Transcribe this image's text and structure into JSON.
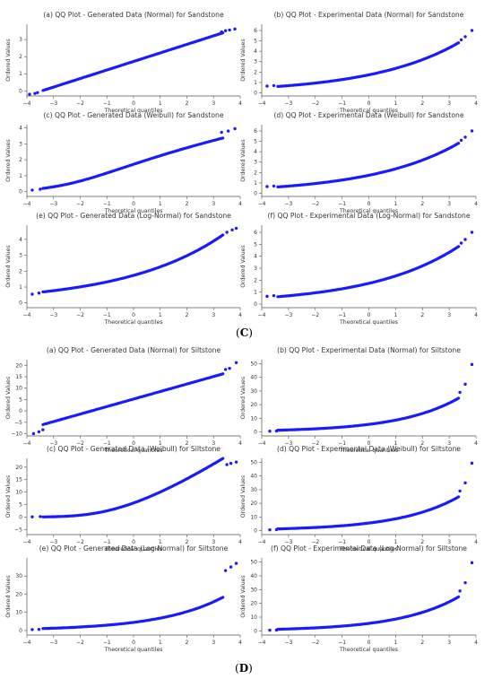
{
  "figure_labels": {
    "panel_c": "C",
    "panel_d": "D"
  },
  "chart_data": [
    {
      "id": "c-a",
      "type": "scatter",
      "title": "(a) QQ Plot - Generated Data (Normal) for Sandstone",
      "xlabel": "Theoretical quantiles",
      "ylabel": "Ordered Values",
      "xlim": [
        -4,
        4
      ],
      "ylim": [
        -0.3,
        3.9
      ],
      "xticks": [
        -4,
        -3,
        -2,
        -1,
        0,
        1,
        2,
        3,
        4
      ],
      "yticks": [
        0,
        1,
        2,
        3
      ],
      "curve": {
        "kind": "normal",
        "mu": 1.72,
        "sigma": 0.5
      },
      "points": [
        [
          -3.9,
          -0.2
        ],
        [
          -3.7,
          -0.15
        ],
        [
          -3.6,
          -0.1
        ],
        [
          3.3,
          3.45
        ],
        [
          3.45,
          3.52
        ],
        [
          3.6,
          3.56
        ],
        [
          3.8,
          3.62
        ]
      ],
      "marker_color": "#1a1aff"
    },
    {
      "id": "c-b",
      "type": "scatter",
      "title": "(b) QQ Plot - Experimental Data (Normal) for Sandstone",
      "xlabel": "Theoretical quantiles",
      "ylabel": "Ordered Values",
      "xlim": [
        -4,
        4
      ],
      "ylim": [
        -0.3,
        6.6
      ],
      "xticks": [
        -4,
        -3,
        -2,
        -1,
        0,
        1,
        2,
        3,
        4
      ],
      "yticks": [
        0,
        1,
        2,
        3,
        4,
        5,
        6
      ],
      "curve": {
        "kind": "lognormal",
        "mu": 0.55,
        "sigma": 0.305
      },
      "points": [
        [
          -3.8,
          0.65
        ],
        [
          -3.55,
          0.7
        ],
        [
          3.45,
          5.1
        ],
        [
          3.6,
          5.4
        ],
        [
          3.85,
          6.0
        ]
      ],
      "marker_color": "#1a1aff"
    },
    {
      "id": "c-c",
      "type": "scatter",
      "title": "(c) QQ Plot - Generated Data (Weibull) for Sandstone",
      "xlabel": "Theoretical quantiles",
      "ylabel": "Ordered Values",
      "xlim": [
        -4,
        4
      ],
      "ylim": [
        -0.3,
        4.2
      ],
      "xticks": [
        -4,
        -3,
        -2,
        -1,
        0,
        1,
        2,
        3,
        4
      ],
      "yticks": [
        0,
        1,
        2,
        3,
        4
      ],
      "curve": {
        "kind": "weibull",
        "k": 3.6,
        "lambda": 1.9
      },
      "points": [
        [
          -3.8,
          0.1
        ],
        [
          -3.5,
          0.15
        ],
        [
          3.3,
          3.72
        ],
        [
          3.55,
          3.8
        ],
        [
          3.8,
          3.95
        ]
      ],
      "marker_color": "#1a1aff"
    },
    {
      "id": "c-d",
      "type": "scatter",
      "title": "(d) QQ Plot - Experimental Data (Weibull) for Sandstone",
      "xlabel": "Theoretical quantiles",
      "ylabel": "Ordered Values",
      "xlim": [
        -4,
        4
      ],
      "ylim": [
        -0.3,
        6.6
      ],
      "xticks": [
        -4,
        -3,
        -2,
        -1,
        0,
        1,
        2,
        3,
        4
      ],
      "yticks": [
        0,
        1,
        2,
        3,
        4,
        5,
        6
      ],
      "curve": {
        "kind": "lognormal",
        "mu": 0.55,
        "sigma": 0.305
      },
      "points": [
        [
          -3.8,
          0.65
        ],
        [
          -3.55,
          0.7
        ],
        [
          3.45,
          5.1
        ],
        [
          3.6,
          5.4
        ],
        [
          3.85,
          6.0
        ]
      ],
      "marker_color": "#1a1aff"
    },
    {
      "id": "c-e",
      "type": "scatter",
      "title": "(e) QQ Plot - Generated Data (Log-Normal) for Sandstone",
      "xlabel": "Theoretical quantiles",
      "ylabel": "Ordered Values",
      "xlim": [
        -4,
        4
      ],
      "ylim": [
        -0.3,
        4.9
      ],
      "xticks": [
        -4,
        -3,
        -2,
        -1,
        0,
        1,
        2,
        3,
        4
      ],
      "yticks": [
        0,
        1,
        2,
        3,
        4
      ],
      "curve": {
        "kind": "lognormal",
        "mu": 0.55,
        "sigma": 0.27
      },
      "points": [
        [
          -3.8,
          0.55
        ],
        [
          -3.55,
          0.62
        ],
        [
          3.5,
          4.45
        ],
        [
          3.7,
          4.6
        ],
        [
          3.85,
          4.7
        ]
      ],
      "marker_color": "#1a1aff"
    },
    {
      "id": "c-f",
      "type": "scatter",
      "title": "(f) QQ Plot - Experimental Data (Log-Normal) for Sandstone",
      "xlabel": "Theoretical quantiles",
      "ylabel": "Ordered Values",
      "xlim": [
        -4,
        4
      ],
      "ylim": [
        -0.3,
        6.6
      ],
      "xticks": [
        -4,
        -3,
        -2,
        -1,
        0,
        1,
        2,
        3,
        4
      ],
      "yticks": [
        0,
        1,
        2,
        3,
        4,
        5,
        6
      ],
      "curve": {
        "kind": "lognormal",
        "mu": 0.55,
        "sigma": 0.305
      },
      "points": [
        [
          -3.8,
          0.65
        ],
        [
          -3.55,
          0.7
        ],
        [
          3.45,
          5.1
        ],
        [
          3.6,
          5.4
        ],
        [
          3.85,
          6.0
        ]
      ],
      "marker_color": "#1a1aff"
    },
    {
      "id": "d-a",
      "type": "scatter",
      "title": "(a) QQ Plot - Generated Data (Normal) for Siltstone",
      "xlabel": "Theoretical quantiles",
      "ylabel": "Ordered Values",
      "xlim": [
        -4,
        4
      ],
      "ylim": [
        -11,
        22.5
      ],
      "xticks": [
        -4,
        -3,
        -2,
        -1,
        0,
        1,
        2,
        3,
        4
      ],
      "yticks": [
        -10,
        -5,
        0,
        5,
        10,
        15,
        20
      ],
      "curve": {
        "kind": "normal",
        "mu": 5.2,
        "sigma": 3.3
      },
      "points": [
        [
          -3.75,
          -10
        ],
        [
          -3.55,
          -9.2
        ],
        [
          -3.4,
          -8.3
        ],
        [
          3.45,
          18.2
        ],
        [
          3.6,
          18.7
        ],
        [
          3.85,
          21.2
        ]
      ],
      "marker_color": "#1a1aff"
    },
    {
      "id": "d-b",
      "type": "scatter",
      "title": "(b) QQ Plot - Experimental Data (Normal) for Siltstone",
      "xlabel": "Theoretical quantiles",
      "ylabel": "Ordered Values",
      "xlim": [
        -4,
        4
      ],
      "ylim": [
        -3,
        53
      ],
      "xticks": [
        -4,
        -3,
        -2,
        -1,
        0,
        1,
        2,
        3,
        4
      ],
      "yticks": [
        0,
        10,
        20,
        30,
        40,
        50
      ],
      "curve": {
        "kind": "lognormal",
        "mu": 1.7,
        "sigma": 0.45
      },
      "points": [
        [
          -3.7,
          0.5
        ],
        [
          -3.45,
          0.6
        ],
        [
          3.4,
          29
        ],
        [
          3.6,
          35
        ],
        [
          3.85,
          49.5
        ]
      ],
      "marker_color": "#1a1aff"
    },
    {
      "id": "d-c",
      "type": "scatter",
      "title": "(c) QQ Plot - Generated Data (Weibull) for Siltstone",
      "xlabel": "Theoretical quantiles",
      "ylabel": "Ordered Values",
      "xlim": [
        -4,
        4
      ],
      "ylim": [
        -7,
        23.5
      ],
      "xticks": [
        -4,
        -3,
        -2,
        -1,
        0,
        1,
        2,
        3,
        4
      ],
      "yticks": [
        -5,
        0,
        5,
        10,
        15,
        20
      ],
      "curve": {
        "kind": "weibull",
        "k": 1.7,
        "lambda": 7
      },
      "points": [
        [
          -3.8,
          0.1
        ],
        [
          -3.5,
          0.2
        ],
        [
          3.5,
          21
        ],
        [
          3.65,
          21.5
        ],
        [
          3.85,
          22
        ]
      ],
      "marker_color": "#1a1aff"
    },
    {
      "id": "d-d",
      "type": "scatter",
      "title": "(d) QQ Plot - Experimental Data (Weibull) for Siltstone",
      "xlabel": "Theoretical quantiles",
      "ylabel": "Ordered Values",
      "xlim": [
        -4,
        4
      ],
      "ylim": [
        -3,
        53
      ],
      "xticks": [
        -4,
        -3,
        -2,
        -1,
        0,
        1,
        2,
        3,
        4
      ],
      "yticks": [
        0,
        10,
        20,
        30,
        40,
        50
      ],
      "curve": {
        "kind": "lognormal",
        "mu": 1.7,
        "sigma": 0.45
      },
      "points": [
        [
          -3.7,
          0.5
        ],
        [
          -3.45,
          0.6
        ],
        [
          3.4,
          29
        ],
        [
          3.6,
          35
        ],
        [
          3.85,
          49.5
        ]
      ],
      "marker_color": "#1a1aff"
    },
    {
      "id": "d-e",
      "type": "scatter",
      "title": "(e) QQ Plot - Generated Data (Log-Normal) for Siltstone",
      "xlabel": "Theoretical quantiles",
      "ylabel": "Ordered Values",
      "xlim": [
        -4,
        4
      ],
      "ylim": [
        -2.5,
        40
      ],
      "xticks": [
        -4,
        -3,
        -2,
        -1,
        0,
        1,
        2,
        3,
        4
      ],
      "yticks": [
        0,
        10,
        20,
        30
      ],
      "curve": {
        "kind": "lognormal",
        "mu": 1.5,
        "sigma": 0.42
      },
      "points": [
        [
          -3.8,
          0.5
        ],
        [
          -3.55,
          0.6
        ],
        [
          3.45,
          33
        ],
        [
          3.65,
          35
        ],
        [
          3.85,
          37
        ]
      ],
      "marker_color": "#1a1aff"
    },
    {
      "id": "d-f",
      "type": "scatter",
      "title": "(f) QQ Plot - Experimental Data (Log-Normal) for Siltstone",
      "xlabel": "Theoretical quantiles",
      "ylabel": "Ordered Values",
      "xlim": [
        -4,
        4
      ],
      "ylim": [
        -3,
        53
      ],
      "xticks": [
        -4,
        -3,
        -2,
        -1,
        0,
        1,
        2,
        3,
        4
      ],
      "yticks": [
        0,
        10,
        20,
        30,
        40,
        50
      ],
      "curve": {
        "kind": "lognormal",
        "mu": 1.7,
        "sigma": 0.45
      },
      "points": [
        [
          -3.7,
          0.5
        ],
        [
          -3.45,
          0.6
        ],
        [
          3.4,
          29
        ],
        [
          3.6,
          35
        ],
        [
          3.85,
          49.5
        ]
      ],
      "marker_color": "#1a1aff"
    }
  ]
}
